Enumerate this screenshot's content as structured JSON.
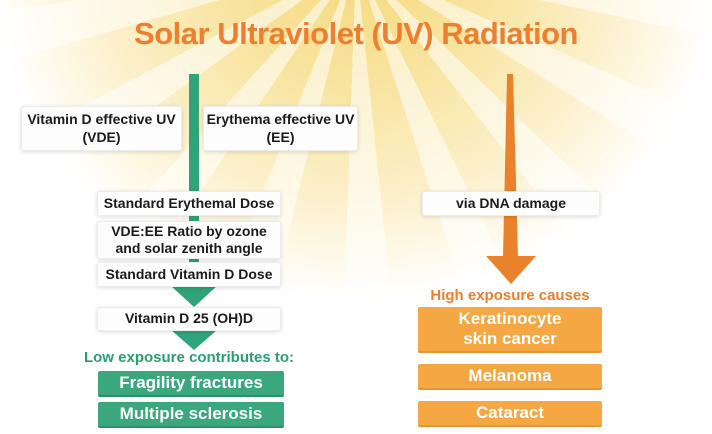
{
  "title": "Solar Ultraviolet (UV) Radiation",
  "colors": {
    "title_orange": "#EF7F30",
    "arrow_green": "#2FA37A",
    "box_green": "#3AA87C",
    "heading_green": "#2AA06F",
    "arrow_orange": "#E9822B",
    "box_orange": "#F4A742",
    "heading_orange": "#EE7D2E",
    "background_glow": "#F8E49E"
  },
  "left_pathway": {
    "source_boxes": [
      {
        "line1": "Vitamin D effective UV",
        "line2": "(VDE)"
      },
      {
        "line1": "Erythema effective UV",
        "line2": "(EE)"
      }
    ],
    "chain": [
      {
        "label": "Standard Erythemal Dose"
      },
      {
        "line1": "VDE:EE Ratio by ozone",
        "line2": "and solar zenith angle"
      },
      {
        "label": "Standard Vitamin D Dose"
      },
      {
        "label": "Vitamin D 25 (OH)D"
      }
    ],
    "outcome_heading": "Low exposure contributes to:",
    "outcomes": [
      {
        "label": "Fragility fractures"
      },
      {
        "label": "Multiple sclerosis"
      }
    ]
  },
  "right_pathway": {
    "via_box": "via DNA damage",
    "outcome_heading": "High exposure causes",
    "outcomes": [
      {
        "line1": "Keratinocyte",
        "line2": "skin cancer"
      },
      {
        "label": "Melanoma"
      },
      {
        "label": "Cataract"
      }
    ]
  }
}
